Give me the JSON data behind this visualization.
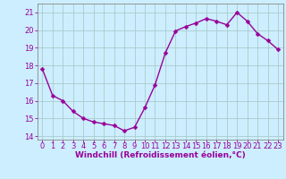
{
  "x": [
    0,
    1,
    2,
    3,
    4,
    5,
    6,
    7,
    8,
    9,
    10,
    11,
    12,
    13,
    14,
    15,
    16,
    17,
    18,
    19,
    20,
    21,
    22,
    23
  ],
  "y": [
    17.8,
    16.3,
    16.0,
    15.4,
    15.0,
    14.8,
    14.7,
    14.6,
    14.3,
    14.5,
    15.6,
    16.9,
    18.7,
    19.95,
    20.2,
    20.4,
    20.65,
    20.5,
    20.3,
    21.0,
    20.5,
    19.8,
    19.4,
    18.9
  ],
  "line_color": "#990099",
  "marker": "D",
  "markersize": 2.5,
  "linewidth": 1.0,
  "background_color": "#cceeff",
  "grid_color": "#aacccc",
  "xlabel": "Windchill (Refroidissement éolien,°C)",
  "xlabel_fontsize": 6.5,
  "ylabel_ticks": [
    14,
    15,
    16,
    17,
    18,
    19,
    20,
    21
  ],
  "xlim": [
    -0.5,
    23.5
  ],
  "ylim": [
    13.8,
    21.5
  ],
  "xtick_labels": [
    "0",
    "1",
    "2",
    "3",
    "4",
    "5",
    "6",
    "7",
    "8",
    "9",
    "10",
    "11",
    "12",
    "13",
    "14",
    "15",
    "16",
    "17",
    "18",
    "19",
    "20",
    "21",
    "22",
    "23"
  ],
  "tick_fontsize": 6.0,
  "tick_color": "#990099",
  "spine_color": "#888888"
}
